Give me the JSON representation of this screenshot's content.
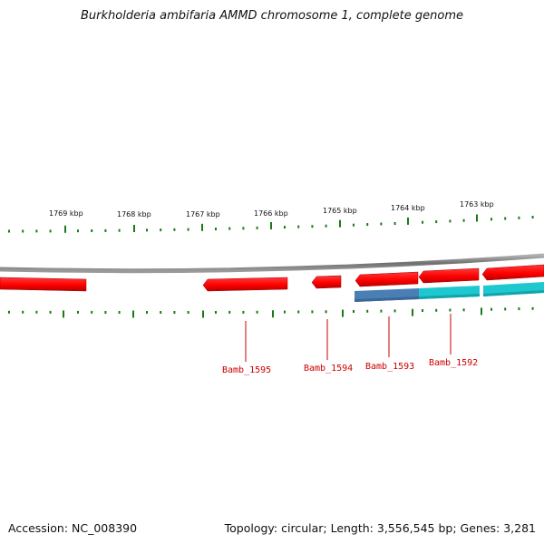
{
  "title": "Burkholderia ambifaria AMMD chromosome 1, complete genome",
  "footer": {
    "accession": "Accession: NC_008390",
    "info": "Topology: circular; Length: 3,556,545 bp; Genes: 3,281"
  },
  "ruler": {
    "unit": "kbp",
    "labels": [
      "1769 kbp",
      "1768 kbp",
      "1767 kbp",
      "1766 kbp",
      "1765 kbp",
      "1764 kbp",
      "1763 kbp"
    ]
  },
  "genes": [
    {
      "locus": "Bamb_1595",
      "strand": "reverse"
    },
    {
      "locus": "Bamb_1594",
      "strand": "reverse"
    },
    {
      "locus": "Bamb_1593",
      "strand": "reverse"
    },
    {
      "locus": "Bamb_1592",
      "strand": "reverse"
    }
  ],
  "colors": {
    "gene": "#ff0000",
    "gene_dark": "#c00000",
    "orf_blue": "#4a7fb5",
    "orf_cyan": "#1ec8d0",
    "tick": "#1a7a1a",
    "backbone": "#8a8a8a",
    "label": "#cc0000"
  }
}
